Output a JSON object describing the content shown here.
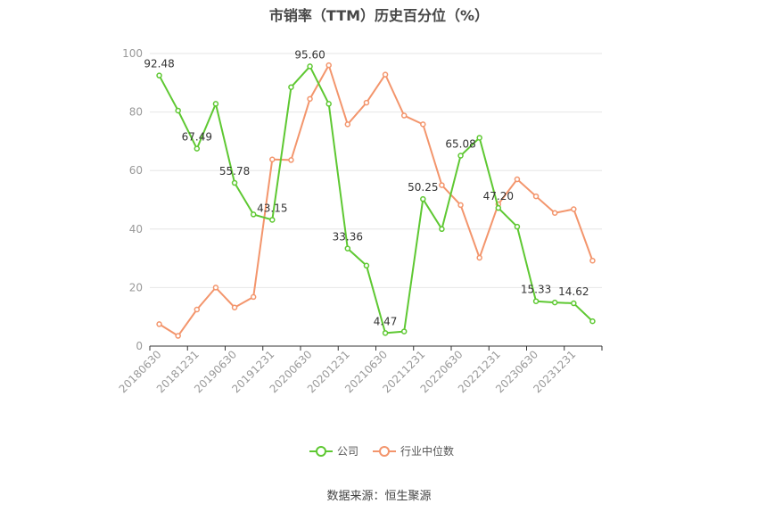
{
  "title": "市销率（TTM）历史百分位（%）",
  "source": "数据来源：恒生聚源",
  "colors": {
    "company": "#5ec832",
    "industry": "#f3956c",
    "grid": "#e6e6e6",
    "axis": "#333333",
    "tick": "#999999"
  },
  "chart_data": {
    "type": "line",
    "title": "市销率（TTM）历史百分位（%）",
    "xlabel": "",
    "ylabel": "",
    "ylim": [
      0,
      100
    ],
    "yticks": [
      0,
      20,
      40,
      60,
      80,
      100
    ],
    "grid": true,
    "legend_position": "bottom",
    "x": [
      "20180630",
      "20180930",
      "20181231",
      "20190331",
      "20190630",
      "20190930",
      "20191231",
      "20200331",
      "20200630",
      "20200930",
      "20201231",
      "20210331",
      "20210630",
      "20210930",
      "20211231",
      "20220331",
      "20220630",
      "20220930",
      "20221231",
      "20230331",
      "20230630",
      "20230930",
      "20231231",
      "20240331"
    ],
    "xtick_labels": [
      "20180630",
      "20181231",
      "20190630",
      "20191231",
      "20200630",
      "20201231",
      "20210630",
      "20211231",
      "20220630",
      "20221231",
      "20230630",
      "20231231"
    ],
    "series": [
      {
        "name": "公司",
        "values": [
          92.48,
          80.5,
          67.49,
          82.8,
          55.78,
          45.0,
          43.15,
          88.5,
          95.6,
          82.8,
          33.36,
          27.5,
          4.47,
          5.0,
          50.25,
          40.0,
          65.08,
          71.2,
          47.2,
          40.8,
          15.33,
          14.9,
          14.62,
          8.5
        ],
        "labels": [
          "92.48",
          null,
          "67.49",
          null,
          "55.78",
          null,
          "43.15",
          null,
          "95.60",
          null,
          "33.36",
          null,
          "4.47",
          null,
          "50.25",
          null,
          "65.08",
          null,
          "47.20",
          null,
          "15.33",
          null,
          "14.62",
          null
        ]
      },
      {
        "name": "行业中位数",
        "values": [
          7.5,
          3.5,
          12.5,
          20.0,
          13.2,
          16.8,
          63.8,
          63.6,
          84.5,
          96.0,
          75.8,
          83.2,
          92.8,
          78.8,
          75.8,
          55.0,
          48.2,
          30.2,
          48.5,
          57.0,
          51.2,
          45.5,
          46.8,
          29.2
        ]
      }
    ]
  }
}
